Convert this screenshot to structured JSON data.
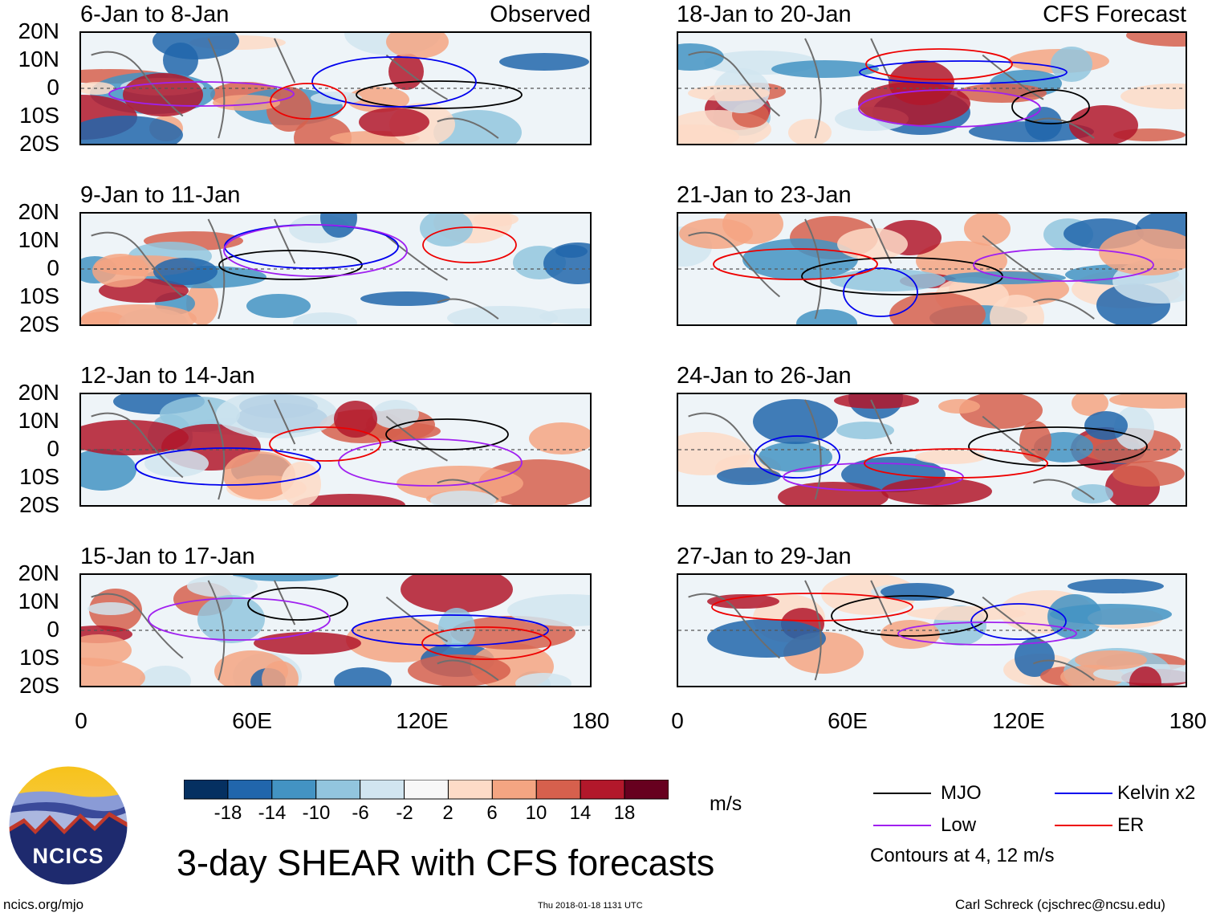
{
  "tags": {
    "observed": "Observed",
    "forecast": "CFS Forecast"
  },
  "panels": [
    {
      "title": "6-Jan to 8-Jan",
      "section": "observed"
    },
    {
      "title": "9-Jan to 11-Jan",
      "section": "observed"
    },
    {
      "title": "12-Jan to 14-Jan",
      "section": "observed"
    },
    {
      "title": "15-Jan to 17-Jan",
      "section": "observed"
    },
    {
      "title": "18-Jan to 20-Jan",
      "section": "forecast"
    },
    {
      "title": "21-Jan to 23-Jan",
      "section": "forecast"
    },
    {
      "title": "24-Jan to 26-Jan",
      "section": "forecast"
    },
    {
      "title": "27-Jan to 29-Jan",
      "section": "forecast"
    }
  ],
  "lat_labels": [
    "20N",
    "10N",
    "0",
    "10S",
    "20S"
  ],
  "lon_labels": [
    "0",
    "60E",
    "120E",
    "180"
  ],
  "colorbar": {
    "labels": [
      "-18",
      "-14",
      "-10",
      "-6",
      "-2",
      "2",
      "6",
      "10",
      "14",
      "18"
    ],
    "colors": [
      "#053061",
      "#2166ac",
      "#4393c3",
      "#92c5de",
      "#d1e5f0",
      "#f7f7f7",
      "#fddbc7",
      "#f4a582",
      "#d6604d",
      "#b2182b",
      "#67001f"
    ],
    "units": "m/s"
  },
  "legend": {
    "items": [
      {
        "label": "MJO",
        "color": "#000000"
      },
      {
        "label": "Kelvin x2",
        "color": "#0000ee"
      },
      {
        "label": "Low",
        "color": "#a020f0"
      },
      {
        "label": "ER",
        "color": "#ee0000"
      }
    ],
    "note": "Contours at 4, 12 m/s"
  },
  "logo": {
    "text": "NCICS"
  },
  "title": "3-day SHEAR with CFS forecasts",
  "footer": {
    "url": "ncics.org/mjo",
    "timestamp": "Thu 2018-01-18 1131 UTC",
    "credit": "Carl Schreck (cjschrec@ncsu.edu)"
  }
}
